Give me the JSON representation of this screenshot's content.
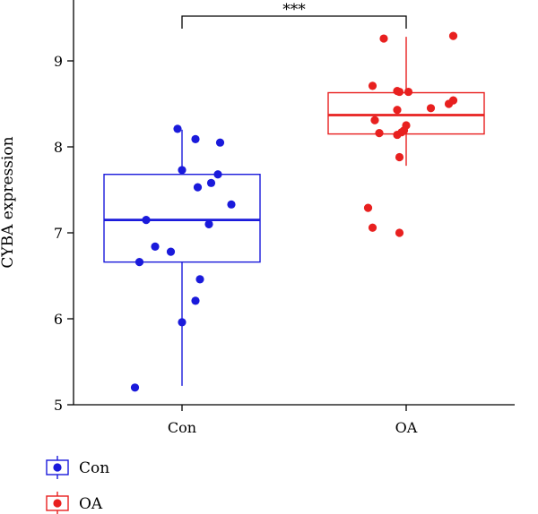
{
  "chart_data": {
    "type": "box",
    "ylabel": "CYBA expression",
    "xlabel": "",
    "ylim": [
      5,
      9.5
    ],
    "yticks": [
      5,
      6,
      7,
      8,
      9
    ],
    "categories": [
      "Con",
      "OA"
    ],
    "colors": {
      "Con": "#1a1adb",
      "OA": "#e8201f"
    },
    "series": [
      {
        "name": "Con",
        "box": {
          "min": 5.22,
          "q1": 6.66,
          "median": 7.15,
          "q3": 7.68,
          "max": 8.2
        },
        "points": [
          {
            "x": -0.02,
            "y": 8.21
          },
          {
            "x": 0.06,
            "y": 8.09
          },
          {
            "x": 0.17,
            "y": 8.05
          },
          {
            "x": 0.0,
            "y": 7.73
          },
          {
            "x": 0.16,
            "y": 7.68
          },
          {
            "x": 0.13,
            "y": 7.58
          },
          {
            "x": 0.07,
            "y": 7.53
          },
          {
            "x": 0.22,
            "y": 7.33
          },
          {
            "x": -0.16,
            "y": 7.15
          },
          {
            "x": 0.12,
            "y": 7.1
          },
          {
            "x": -0.12,
            "y": 6.84
          },
          {
            "x": -0.05,
            "y": 6.78
          },
          {
            "x": -0.19,
            "y": 6.66
          },
          {
            "x": 0.08,
            "y": 6.46
          },
          {
            "x": 0.06,
            "y": 6.21
          },
          {
            "x": 0.0,
            "y": 5.96
          },
          {
            "x": -0.21,
            "y": 5.2
          }
        ]
      },
      {
        "name": "OA",
        "box": {
          "min": 7.78,
          "q1": 8.15,
          "median": 8.37,
          "q3": 8.63,
          "max": 9.28
        },
        "points": [
          {
            "x": 0.21,
            "y": 9.29
          },
          {
            "x": -0.1,
            "y": 9.26
          },
          {
            "x": -0.15,
            "y": 8.71
          },
          {
            "x": -0.04,
            "y": 8.65
          },
          {
            "x": -0.03,
            "y": 8.64
          },
          {
            "x": 0.01,
            "y": 8.64
          },
          {
            "x": 0.21,
            "y": 8.54
          },
          {
            "x": 0.19,
            "y": 8.5
          },
          {
            "x": 0.11,
            "y": 8.45
          },
          {
            "x": -0.04,
            "y": 8.43
          },
          {
            "x": -0.14,
            "y": 8.31
          },
          {
            "x": 0.0,
            "y": 8.25
          },
          {
            "x": -0.01,
            "y": 8.19
          },
          {
            "x": -0.02,
            "y": 8.17
          },
          {
            "x": -0.12,
            "y": 8.16
          },
          {
            "x": -0.04,
            "y": 8.14
          },
          {
            "x": -0.03,
            "y": 7.88
          },
          {
            "x": -0.17,
            "y": 7.29
          },
          {
            "x": -0.15,
            "y": 7.06
          },
          {
            "x": -0.03,
            "y": 7.0
          }
        ]
      }
    ],
    "significance": {
      "between": [
        "Con",
        "OA"
      ],
      "label": "***"
    },
    "legend": {
      "placement": "bottom-left",
      "entries": [
        "Con",
        "OA"
      ]
    },
    "grid": false
  }
}
